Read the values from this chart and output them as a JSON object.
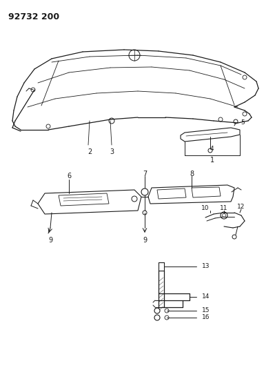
{
  "title": "92732 200",
  "bg_color": "#ffffff",
  "line_color": "#1a1a1a",
  "fig_width": 3.99,
  "fig_height": 5.33,
  "dpi": 100
}
